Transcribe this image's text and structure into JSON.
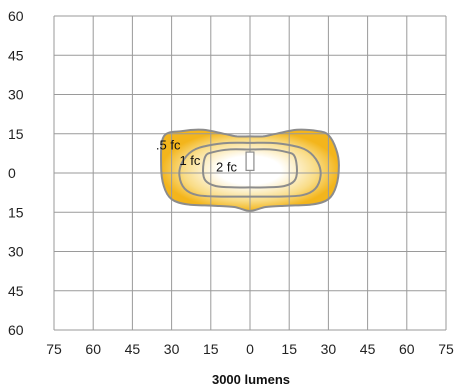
{
  "chart_data": {
    "type": "contour",
    "xlabel": "3000 lumens",
    "x_ticks": [
      "75",
      "60",
      "45",
      "30",
      "15",
      "0",
      "15",
      "30",
      "45",
      "60",
      "75"
    ],
    "y_ticks": [
      "60",
      "45",
      "30",
      "15",
      "0",
      "15",
      "30",
      "45",
      "60"
    ],
    "xlim": [
      -75,
      75
    ],
    "ylim": [
      -60,
      60
    ],
    "grid": true,
    "fill_colors": {
      "outer": "#f3b51c",
      "inner": "#ffffff"
    },
    "grid_color": "#9a9a9a",
    "contour_color": "#8c8c8c",
    "contours": [
      {
        "label": ".5 fc",
        "points": [
          [
            -33,
            14
          ],
          [
            -26,
            16
          ],
          [
            -18,
            16.5
          ],
          [
            -10,
            15
          ],
          [
            -5,
            14
          ],
          [
            0,
            14
          ],
          [
            5,
            14
          ],
          [
            10,
            15
          ],
          [
            18,
            16.5
          ],
          [
            26,
            16
          ],
          [
            30,
            14.5
          ],
          [
            33,
            9
          ],
          [
            34,
            3
          ],
          [
            33,
            -5
          ],
          [
            30,
            -10
          ],
          [
            24,
            -12
          ],
          [
            14,
            -12.5
          ],
          [
            6,
            -13
          ],
          [
            0,
            -14.5
          ],
          [
            -6,
            -13
          ],
          [
            -14,
            -12.5
          ],
          [
            -24,
            -12
          ],
          [
            -30,
            -10
          ],
          [
            -33,
            -5
          ],
          [
            -34,
            3
          ]
        ]
      },
      {
        "label": "1 fc",
        "points": [
          [
            -22,
            8.5
          ],
          [
            -16,
            10.5
          ],
          [
            -8,
            11.5
          ],
          [
            0,
            11.5
          ],
          [
            8,
            11.5
          ],
          [
            16,
            10.5
          ],
          [
            22,
            8.5
          ],
          [
            26,
            4
          ],
          [
            27,
            -1
          ],
          [
            25,
            -6
          ],
          [
            20,
            -8.5
          ],
          [
            10,
            -9
          ],
          [
            0,
            -9
          ],
          [
            -10,
            -9
          ],
          [
            -20,
            -8.5
          ],
          [
            -25,
            -6
          ],
          [
            -27,
            -1
          ],
          [
            -26,
            4
          ]
        ]
      },
      {
        "label": "2 fc",
        "points": [
          [
            -14,
            8
          ],
          [
            -8,
            9
          ],
          [
            0,
            9
          ],
          [
            8,
            9
          ],
          [
            14,
            8
          ],
          [
            17,
            6.5
          ],
          [
            18,
            1
          ],
          [
            17,
            -3
          ],
          [
            13,
            -5
          ],
          [
            6,
            -5.5
          ],
          [
            0,
            -5.5
          ],
          [
            -6,
            -5.5
          ],
          [
            -13,
            -5
          ],
          [
            -17,
            -3
          ],
          [
            -18,
            1
          ],
          [
            -17,
            6.5
          ]
        ]
      }
    ],
    "fixture": {
      "x": [
        -1.5,
        1.5
      ],
      "y": [
        1,
        8
      ]
    }
  }
}
